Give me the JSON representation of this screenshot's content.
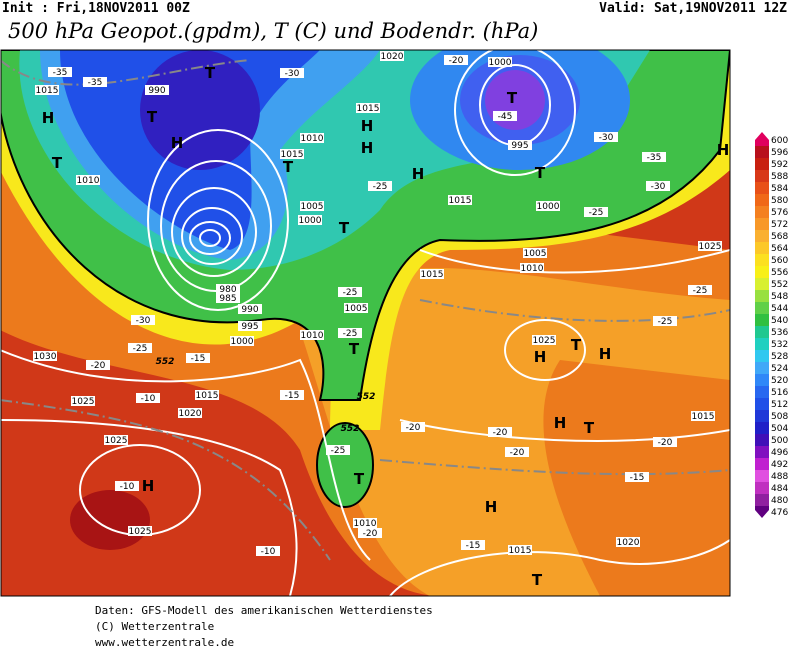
{
  "header": {
    "init": "Init : Fri,18NOV2011 00Z",
    "valid": "Valid: Sat,19NOV2011 12Z",
    "title": "500 hPa Geopot.(gpdm), T (C) und Bodendr. (hPa)"
  },
  "map": {
    "pressure_centers": [
      "T",
      "T",
      "H",
      "T",
      "H",
      "T",
      "H",
      "H",
      "T",
      "H",
      "T",
      "T",
      "T",
      "H",
      "T",
      "H",
      "H",
      "T",
      "H",
      "T",
      "H",
      "T",
      "H"
    ],
    "isobar_labels": [
      "1015",
      "990",
      "1010",
      "1020",
      "1015",
      "1010",
      "1015",
      "995",
      "1000",
      "1015",
      "1005",
      "1000",
      "1005",
      "1010",
      "1015",
      "1025",
      "1025",
      "1005",
      "1010",
      "1000",
      "995",
      "990",
      "985",
      "980",
      "1030",
      "1025",
      "1020",
      "1015",
      "1025",
      "1025",
      "1010",
      "1015",
      "1020",
      "1015",
      "1000"
    ],
    "temperature_labels": [
      "-35",
      "-35",
      "-30",
      "-20",
      "-45",
      "-30",
      "-35",
      "-30",
      "-25",
      "-25",
      "-25",
      "-25",
      "-25",
      "-25",
      "-30",
      "-25",
      "-20",
      "-15",
      "-15",
      "-10",
      "-20",
      "-20",
      "-20",
      "-20",
      "-15",
      "-15",
      "-10",
      "-10",
      "-25",
      "-20"
    ],
    "contour_labels": [
      "552",
      "552",
      "552"
    ]
  },
  "colorbar": {
    "levels": [
      600,
      596,
      592,
      588,
      584,
      580,
      576,
      572,
      568,
      564,
      560,
      556,
      552,
      548,
      544,
      540,
      536,
      532,
      528,
      524,
      520,
      516,
      512,
      508,
      504,
      500,
      496,
      492,
      488,
      484,
      480,
      476
    ],
    "colors": [
      "#e0005e",
      "#b8101c",
      "#c82010",
      "#d83818",
      "#e85018",
      "#f06818",
      "#f48020",
      "#f89828",
      "#fab030",
      "#fcc828",
      "#fce020",
      "#f8f018",
      "#d8f030",
      "#98e040",
      "#60d048",
      "#30c040",
      "#20c890",
      "#20d0c0",
      "#30c8f0",
      "#40a8f8",
      "#3088f8",
      "#2868f0",
      "#2050e8",
      "#2038d8",
      "#2020c8",
      "#4010b8",
      "#8010c0",
      "#c020d0",
      "#e050e0",
      "#c030c0",
      "#9020a0",
      "#600080"
    ]
  },
  "footer": {
    "line1": "Daten: GFS-Modell des amerikanischen Wetterdienstes",
    "line2": "(C) Wetterzentrale",
    "line3": "www.wetterzentrale.de"
  }
}
